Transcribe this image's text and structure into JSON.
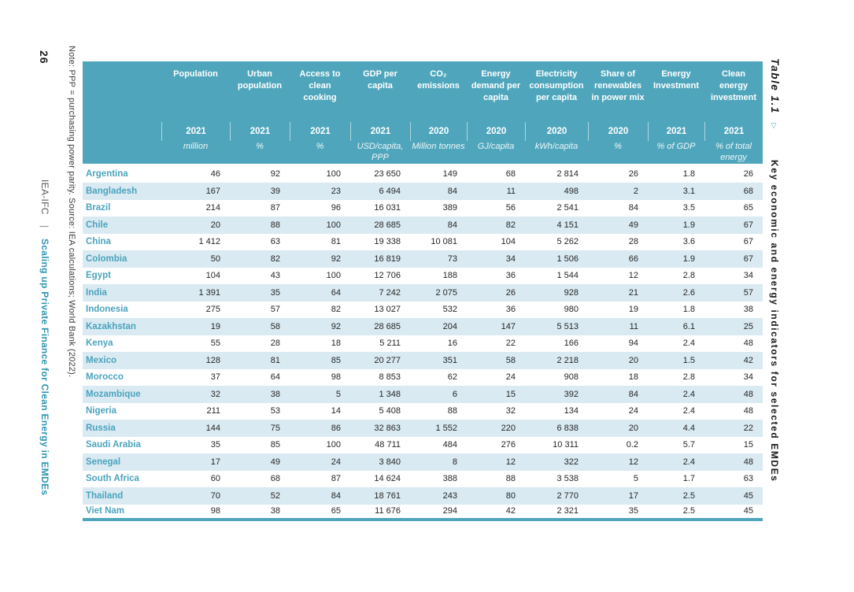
{
  "page": {
    "page_number": "26",
    "note": "Note: PPP = purchasing power parity. Source: IEA calculations; World Bank (2022).",
    "footer_org": "IEA-IFC",
    "footer_separator": "|",
    "footer_title": "Scaling up Private Finance for Clean Energy in EMDEs",
    "table_label": "Table 1.1",
    "table_marker": "▽",
    "table_caption": "Key economic and energy indicators for selected EMDEs"
  },
  "colors": {
    "header_teal": "#4fa6bc",
    "row_alt_blue": "#d9eaf2",
    "country_teal": "#4ba3bd",
    "footer_teal": "#2f96b2",
    "bottom_border_teal": "#4fa6bc"
  },
  "chart_data": {
    "type": "table",
    "title": "Key economic and energy indicators for selected EMDEs",
    "columns": [
      {
        "title": "Population",
        "year": "2021",
        "unit": "million"
      },
      {
        "title": "Urban population",
        "year": "2021",
        "unit": "%"
      },
      {
        "title": "Access to clean cooking",
        "year": "2021",
        "unit": "%"
      },
      {
        "title": "GDP per capita",
        "year": "2021",
        "unit": "USD/capita, PPP"
      },
      {
        "title": "CO₂ emissions",
        "year": "2020",
        "unit": "Million tonnes"
      },
      {
        "title": "Energy demand per capita",
        "year": "2020",
        "unit": "GJ/capita"
      },
      {
        "title": "Electricity consumption per capita",
        "year": "2020",
        "unit": "kWh/capita"
      },
      {
        "title": "Share of renewables in power mix",
        "year": "2020",
        "unit": "%"
      },
      {
        "title": "Energy Investment",
        "year": "2021",
        "unit": "% of GDP"
      },
      {
        "title": "Clean energy investment",
        "year": "2021",
        "unit": "% of total energy"
      }
    ],
    "rows": [
      {
        "country": "Argentina",
        "values": [
          "46",
          "92",
          "100",
          "23 650",
          "149",
          "68",
          "2 814",
          "26",
          "1.8",
          "26"
        ]
      },
      {
        "country": "Bangladesh",
        "values": [
          "167",
          "39",
          "23",
          "6 494",
          "84",
          "11",
          "498",
          "2",
          "3.1",
          "68"
        ]
      },
      {
        "country": "Brazil",
        "values": [
          "214",
          "87",
          "96",
          "16 031",
          "389",
          "56",
          "2 541",
          "84",
          "3.5",
          "65"
        ]
      },
      {
        "country": "Chile",
        "values": [
          "20",
          "88",
          "100",
          "28 685",
          "84",
          "82",
          "4 151",
          "49",
          "1.9",
          "67"
        ]
      },
      {
        "country": "China",
        "values": [
          "1 412",
          "63",
          "81",
          "19 338",
          "10 081",
          "104",
          "5 262",
          "28",
          "3.6",
          "67"
        ]
      },
      {
        "country": "Colombia",
        "values": [
          "50",
          "82",
          "92",
          "16 819",
          "73",
          "34",
          "1 506",
          "66",
          "1.9",
          "67"
        ]
      },
      {
        "country": "Egypt",
        "values": [
          "104",
          "43",
          "100",
          "12 706",
          "188",
          "36",
          "1 544",
          "12",
          "2.8",
          "34"
        ]
      },
      {
        "country": "India",
        "values": [
          "1 391",
          "35",
          "64",
          "7 242",
          "2 075",
          "26",
          "928",
          "21",
          "2.6",
          "57"
        ]
      },
      {
        "country": "Indonesia",
        "values": [
          "275",
          "57",
          "82",
          "13 027",
          "532",
          "36",
          "980",
          "19",
          "1.8",
          "38"
        ]
      },
      {
        "country": "Kazakhstan",
        "values": [
          "19",
          "58",
          "92",
          "28 685",
          "204",
          "147",
          "5 513",
          "11",
          "6.1",
          "25"
        ]
      },
      {
        "country": "Kenya",
        "values": [
          "55",
          "28",
          "18",
          "5 211",
          "16",
          "22",
          "166",
          "94",
          "2.4",
          "48"
        ]
      },
      {
        "country": "Mexico",
        "values": [
          "128",
          "81",
          "85",
          "20 277",
          "351",
          "58",
          "2 218",
          "20",
          "1.5",
          "42"
        ]
      },
      {
        "country": "Morocco",
        "values": [
          "37",
          "64",
          "98",
          "8 853",
          "62",
          "24",
          "908",
          "18",
          "2.8",
          "34"
        ]
      },
      {
        "country": "Mozambique",
        "values": [
          "32",
          "38",
          "5",
          "1 348",
          "6",
          "15",
          "392",
          "84",
          "2.4",
          "48"
        ]
      },
      {
        "country": "Nigeria",
        "values": [
          "211",
          "53",
          "14",
          "5 408",
          "88",
          "32",
          "134",
          "24",
          "2.4",
          "48"
        ]
      },
      {
        "country": "Russia",
        "values": [
          "144",
          "75",
          "86",
          "32 863",
          "1 552",
          "220",
          "6 838",
          "20",
          "4.4",
          "22"
        ]
      },
      {
        "country": "Saudi Arabia",
        "values": [
          "35",
          "85",
          "100",
          "48 711",
          "484",
          "276",
          "10 311",
          "0.2",
          "5.7",
          "15"
        ]
      },
      {
        "country": "Senegal",
        "values": [
          "17",
          "49",
          "24",
          "3 840",
          "8",
          "12",
          "322",
          "12",
          "2.4",
          "48"
        ]
      },
      {
        "country": "South Africa",
        "values": [
          "60",
          "68",
          "87",
          "14 624",
          "388",
          "88",
          "3 538",
          "5",
          "1.7",
          "63"
        ]
      },
      {
        "country": "Thailand",
        "values": [
          "70",
          "52",
          "84",
          "18 761",
          "243",
          "80",
          "2 770",
          "17",
          "2.5",
          "45"
        ]
      },
      {
        "country": "Viet Nam",
        "values": [
          "98",
          "38",
          "65",
          "11 676",
          "294",
          "42",
          "2 321",
          "35",
          "2.5",
          "45"
        ]
      }
    ]
  }
}
